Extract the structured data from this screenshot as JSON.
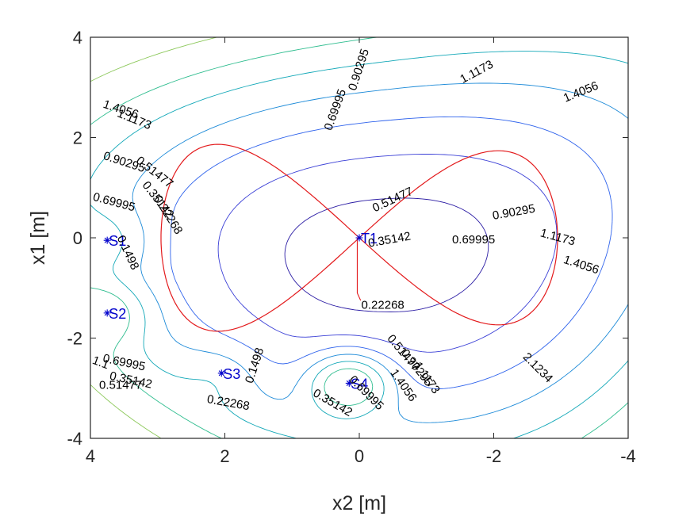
{
  "chart_data": {
    "type": "contour",
    "xlabel": "x2 [m]",
    "ylabel": "x1 [m]",
    "xlim": [
      4,
      -4
    ],
    "ylim": [
      -4,
      4
    ],
    "x_reversed": true,
    "xticks": [
      4,
      2,
      0,
      -2,
      -4
    ],
    "xtick_labels": [
      "4",
      "2",
      "0",
      "-2",
      "-4"
    ],
    "yticks": [
      4,
      2,
      0,
      -2,
      -4
    ],
    "ytick_labels": [
      "4",
      "2",
      "0",
      "-2",
      "-4"
    ],
    "grid": false,
    "contour_levels": [
      0.22268,
      0.35142,
      0.51477,
      0.69995,
      0.90295,
      1.1173,
      1.4056,
      2.1234
    ],
    "contour_labels": [
      {
        "text": "0.69995",
        "x2": 0.35,
        "x1": 2.55,
        "angle": -70
      },
      {
        "text": "0.90295",
        "x2": 0.0,
        "x1": 3.35,
        "angle": -72
      },
      {
        "text": "1.1173",
        "x2": -1.75,
        "x1": 3.3,
        "angle": -28
      },
      {
        "text": "1.4056",
        "x2": -3.3,
        "x1": 2.9,
        "angle": -22
      },
      {
        "text": "1.4056",
        "x2": 3.55,
        "x1": 2.55,
        "angle": 18
      },
      {
        "text": "1.1173",
        "x2": 3.35,
        "x1": 2.35,
        "angle": 22
      },
      {
        "text": "0.90295",
        "x2": 3.5,
        "x1": 1.5,
        "angle": 18
      },
      {
        "text": "0.51477",
        "x2": 3.05,
        "x1": 1.3,
        "angle": 38
      },
      {
        "text": "0.35142",
        "x2": 3.0,
        "x1": 0.75,
        "angle": 52
      },
      {
        "text": "0.22268",
        "x2": 2.85,
        "x1": 0.45,
        "angle": 58
      },
      {
        "text": "0.69995",
        "x2": 3.65,
        "x1": 0.7,
        "angle": 15
      },
      {
        "text": "0.1498",
        "x2": 3.45,
        "x1": -0.3,
        "angle": 65
      },
      {
        "text": "0.51477",
        "x2": -0.5,
        "x1": 0.75,
        "angle": -25
      },
      {
        "text": "0.35142",
        "x2": -0.45,
        "x1": -0.05,
        "angle": -10
      },
      {
        "text": "0.90295",
        "x2": -2.3,
        "x1": 0.5,
        "angle": -10
      },
      {
        "text": "0.69995",
        "x2": -1.7,
        "x1": -0.05,
        "angle": 0
      },
      {
        "text": "1.1173",
        "x2": -2.95,
        "x1": 0.0,
        "angle": 15
      },
      {
        "text": "1.4056",
        "x2": -3.3,
        "x1": -0.55,
        "angle": 18
      },
      {
        "text": "0.22268",
        "x2": -0.35,
        "x1": -1.35,
        "angle": 0
      },
      {
        "text": "2.1234",
        "x2": -2.65,
        "x1": -2.6,
        "angle": 45
      },
      {
        "text": "0.51477",
        "x2": -0.65,
        "x1": -2.3,
        "angle": 50
      },
      {
        "text": "0.90295",
        "x2": -0.85,
        "x1": -2.6,
        "angle": 52
      },
      {
        "text": "1.1173",
        "x2": -1.0,
        "x1": -2.8,
        "angle": 55
      },
      {
        "text": "1.4056",
        "x2": -0.65,
        "x1": -2.95,
        "angle": 55
      },
      {
        "text": "0.69995",
        "x2": -0.1,
        "x1": -3.1,
        "angle": 45
      },
      {
        "text": "0.35142",
        "x2": 0.4,
        "x1": -3.3,
        "angle": 30
      },
      {
        "text": "0.1498",
        "x2": 1.55,
        "x1": -2.55,
        "angle": -72
      },
      {
        "text": "0.22268",
        "x2": 1.95,
        "x1": -3.3,
        "angle": 10
      },
      {
        "text": "1.1",
        "x2": 3.85,
        "x1": -2.5,
        "angle": 20
      },
      {
        "text": "0.69995",
        "x2": 3.5,
        "x1": -2.5,
        "angle": 12
      },
      {
        "text": "0.35142",
        "x2": 3.4,
        "x1": -2.85,
        "angle": 12
      },
      {
        "text": "0.51477",
        "x2": 3.55,
        "x1": -2.95,
        "angle": 0
      }
    ],
    "markers": [
      {
        "label": "T1",
        "x2": 0.0,
        "x1": 0.0
      },
      {
        "label": "S1",
        "x2": 3.75,
        "x1": -0.05
      },
      {
        "label": "S2",
        "x2": 3.75,
        "x1": -1.5
      },
      {
        "label": "S3",
        "x2": 2.05,
        "x1": -2.7
      },
      {
        "label": "S4",
        "x2": 0.15,
        "x1": -2.9
      }
    ],
    "trajectory": {
      "shape": "figure-eight",
      "color": "#e31a1c",
      "center": [
        0.0,
        0.0
      ],
      "lobe_extent_x2": 2.95,
      "lobe_extent_x1": 1.8
    },
    "colormap": [
      "#2b1ca4",
      "#3a3fd6",
      "#2f63ec",
      "#1c8ad8",
      "#13a8b8",
      "#2fbd8f",
      "#8cc85a",
      "#e6e01a"
    ]
  }
}
